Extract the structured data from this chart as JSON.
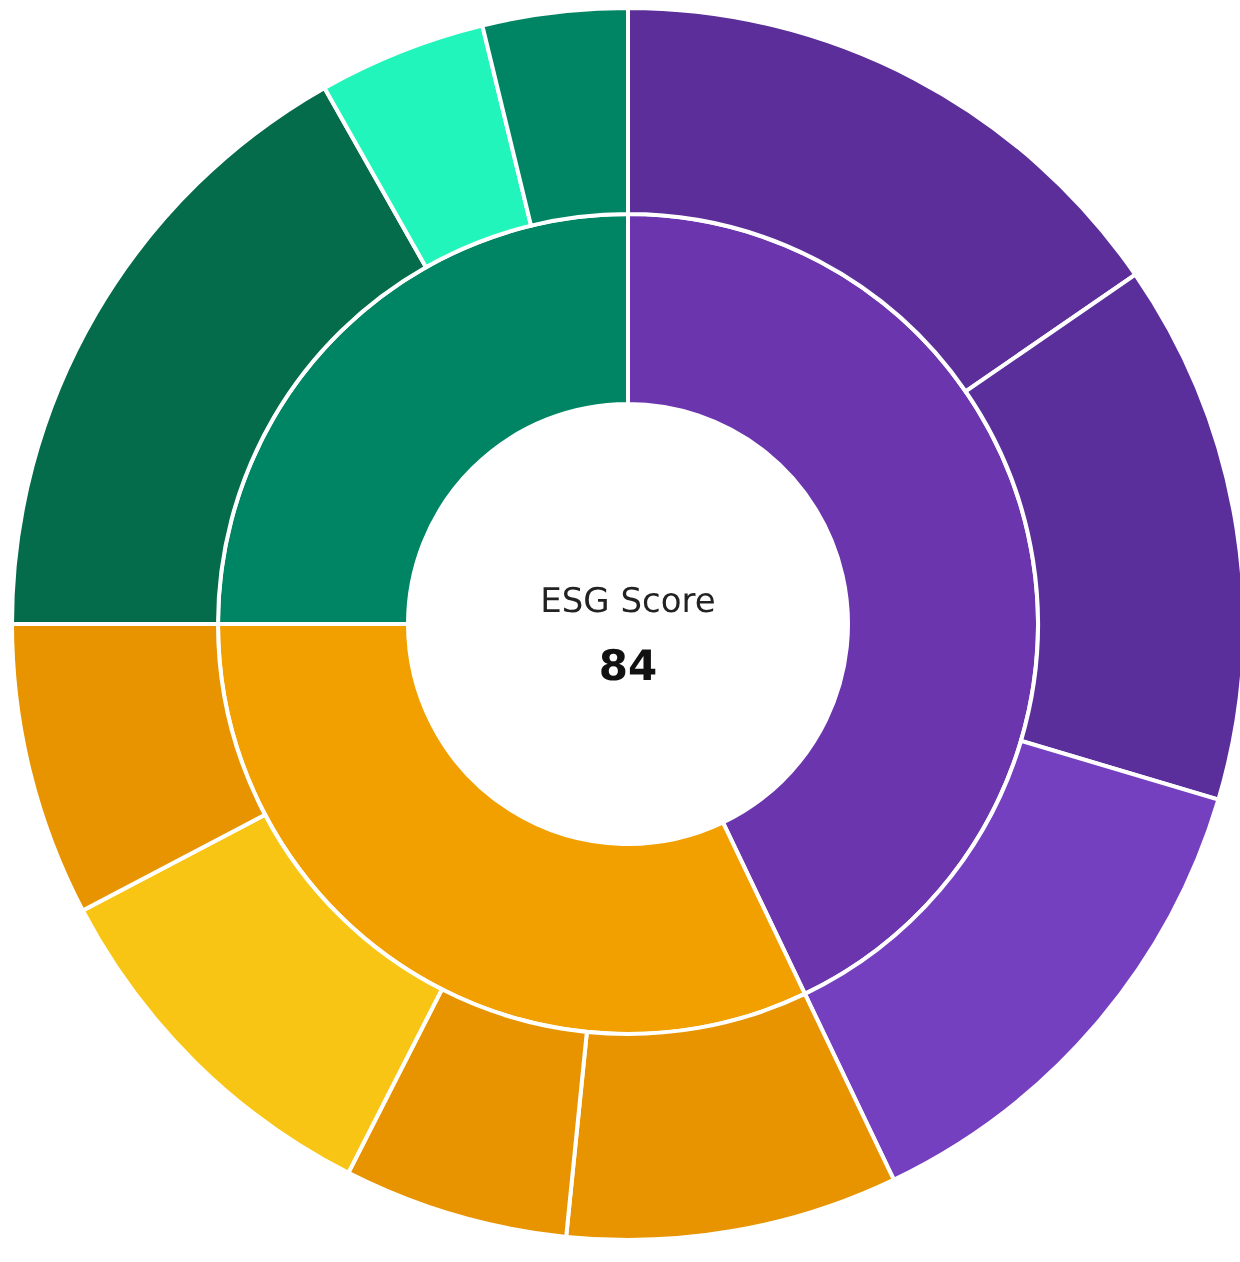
{
  "chart_data": {
    "type": "donut",
    "title": "ESG Score",
    "subtitle": "84",
    "legend": false,
    "series": [
      {
        "values": [
          42.9,
          32.1,
          25.0
        ],
        "colors": [
          "#6a35ad",
          "#f2a000",
          "#008564"
        ]
      },
      {
        "values": [
          15.4,
          14.2,
          13.3,
          8.7,
          5.9,
          9.8,
          7.7,
          16.8,
          4.4,
          3.8
        ],
        "colors": [
          "#5b2e9a",
          "#5a2f9c",
          "#7540c0",
          "#e89400",
          "#e89400",
          "#f8c515",
          "#e89400",
          "#046b4b",
          "#22f5bb",
          "#008564"
        ]
      }
    ]
  }
}
